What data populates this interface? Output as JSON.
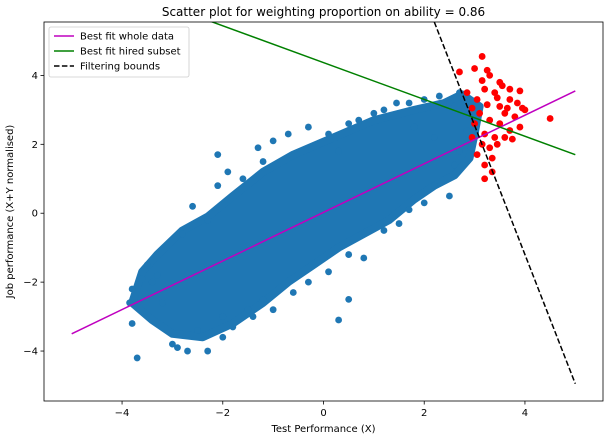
{
  "chart_data": {
    "type": "scatter",
    "title": "Scatter plot for weighting proportion on ability = 0.86",
    "xlabel": "Test Performance (X)",
    "ylabel": "Job performance (X+Y normalised)",
    "xlim": [
      -5.55,
      5.55
    ],
    "ylim": [
      -5.45,
      5.55
    ],
    "xticks": [
      -4,
      -2,
      0,
      2,
      4
    ],
    "yticks": [
      -4,
      -2,
      0,
      2,
      4
    ],
    "grid": false,
    "legend_position": "top-left",
    "colors": {
      "whole": "#1f77b4",
      "hired": "#ff0000",
      "fit_whole": "#bf00bf",
      "fit_hired": "#008000",
      "bounds": "#000000"
    },
    "cloud_outline": [
      [
        -3.8,
        -2.6
      ],
      [
        -3.6,
        -1.7
      ],
      [
        -3.3,
        -1.2
      ],
      [
        -2.8,
        -0.5
      ],
      [
        -2.3,
        -0.1
      ],
      [
        -1.8,
        0.5
      ],
      [
        -1.2,
        1.2
      ],
      [
        -0.6,
        1.7
      ],
      [
        0.2,
        2.2
      ],
      [
        1.0,
        2.7
      ],
      [
        1.8,
        3.0
      ],
      [
        2.4,
        3.2
      ],
      [
        2.75,
        3.45
      ],
      [
        3.1,
        3.1
      ],
      [
        3.0,
        2.3
      ],
      [
        2.9,
        1.6
      ],
      [
        2.6,
        1.1
      ],
      [
        2.2,
        0.8
      ],
      [
        1.8,
        0.4
      ],
      [
        1.3,
        -0.2
      ],
      [
        0.8,
        -0.6
      ],
      [
        0.3,
        -1.0
      ],
      [
        -0.2,
        -1.5
      ],
      [
        -0.7,
        -2.0
      ],
      [
        -1.2,
        -2.6
      ],
      [
        -1.8,
        -3.2
      ],
      [
        -2.4,
        -3.6
      ],
      [
        -3.0,
        -3.5
      ],
      [
        -3.4,
        -3.1
      ]
    ],
    "series": [
      {
        "name": "",
        "role": "whole_data",
        "points": [
          [
            -3.7,
            -4.2
          ],
          [
            -3.8,
            -3.2
          ],
          [
            -3.85,
            -2.6
          ],
          [
            -3.8,
            -2.2
          ],
          [
            -3.6,
            -1.9
          ],
          [
            -3.5,
            -1.5
          ],
          [
            -3.3,
            -1.8
          ],
          [
            -3.0,
            -3.8
          ],
          [
            -2.9,
            -3.9
          ],
          [
            -2.7,
            -4.0
          ],
          [
            -2.3,
            -4.0
          ],
          [
            -2.5,
            -3.4
          ],
          [
            -2.0,
            -3.6
          ],
          [
            -1.8,
            -3.3
          ],
          [
            -1.4,
            -3.0
          ],
          [
            -1.5,
            -2.8
          ],
          [
            -1.0,
            -2.8
          ],
          [
            0.3,
            -3.1
          ],
          [
            0.5,
            -2.5
          ],
          [
            -2.6,
            0.2
          ],
          [
            -2.1,
            0.8
          ],
          [
            -1.9,
            1.2
          ],
          [
            -2.1,
            1.7
          ],
          [
            -1.6,
            1.0
          ],
          [
            -1.2,
            1.5
          ],
          [
            -1.0,
            2.1
          ],
          [
            -1.3,
            1.9
          ],
          [
            -0.7,
            2.3
          ],
          [
            -0.3,
            2.5
          ],
          [
            0.1,
            2.3
          ],
          [
            0.5,
            2.6
          ],
          [
            0.7,
            2.7
          ],
          [
            1.0,
            2.9
          ],
          [
            1.2,
            3.0
          ],
          [
            1.45,
            3.2
          ],
          [
            1.7,
            3.2
          ],
          [
            2.0,
            3.3
          ],
          [
            2.3,
            3.4
          ],
          [
            2.5,
            3.2
          ],
          [
            2.7,
            3.5
          ],
          [
            2.8,
            3.3
          ],
          [
            2.9,
            2.9
          ],
          [
            2.85,
            2.4
          ],
          [
            2.7,
            1.8
          ],
          [
            2.6,
            1.4
          ],
          [
            2.5,
            0.5
          ],
          [
            2.2,
            0.8
          ],
          [
            2.0,
            0.3
          ],
          [
            1.7,
            0.1
          ],
          [
            1.5,
            -0.3
          ],
          [
            1.2,
            -0.5
          ],
          [
            0.8,
            -1.3
          ],
          [
            0.5,
            -1.2
          ],
          [
            0.1,
            -1.7
          ],
          [
            -0.3,
            -2.0
          ],
          [
            -0.6,
            -2.3
          ],
          [
            -1.2,
            -2.5
          ],
          [
            -2.0,
            -3.0
          ],
          [
            -3.2,
            -2.6
          ],
          [
            -3.4,
            -2.0
          ],
          [
            -2.8,
            -0.6
          ],
          [
            -2.3,
            -0.2
          ],
          [
            1.8,
            2.5
          ],
          [
            2.2,
            2.2
          ],
          [
            0.3,
            1.8
          ]
        ]
      },
      {
        "name": "",
        "role": "hired_subset",
        "points": [
          [
            3.15,
            4.55
          ],
          [
            2.7,
            4.1
          ],
          [
            3.0,
            4.2
          ],
          [
            3.3,
            4.0
          ],
          [
            3.5,
            3.8
          ],
          [
            3.7,
            3.6
          ],
          [
            3.9,
            3.55
          ],
          [
            3.85,
            3.2
          ],
          [
            3.95,
            3.05
          ],
          [
            4.0,
            3.0
          ],
          [
            3.7,
            3.3
          ],
          [
            3.4,
            3.5
          ],
          [
            3.2,
            3.6
          ],
          [
            3.05,
            3.3
          ],
          [
            3.25,
            3.15
          ],
          [
            3.5,
            3.1
          ],
          [
            3.6,
            2.9
          ],
          [
            3.8,
            2.8
          ],
          [
            3.9,
            2.5
          ],
          [
            4.5,
            2.75
          ],
          [
            3.7,
            2.4
          ],
          [
            3.5,
            2.6
          ],
          [
            3.3,
            2.7
          ],
          [
            3.1,
            2.9
          ],
          [
            2.95,
            3.05
          ],
          [
            3.0,
            2.6
          ],
          [
            3.2,
            2.3
          ],
          [
            3.4,
            2.2
          ],
          [
            3.6,
            2.2
          ],
          [
            3.75,
            2.15
          ],
          [
            3.3,
            1.9
          ],
          [
            3.35,
            1.6
          ],
          [
            3.2,
            1.4
          ],
          [
            3.35,
            1.2
          ],
          [
            3.2,
            1.0
          ],
          [
            3.45,
            2.0
          ],
          [
            3.15,
            2.0
          ],
          [
            2.95,
            2.2
          ],
          [
            3.05,
            1.7
          ],
          [
            3.55,
            3.7
          ],
          [
            3.25,
            4.15
          ],
          [
            3.45,
            3.35
          ],
          [
            3.65,
            3.05
          ],
          [
            3.15,
            3.85
          ],
          [
            2.85,
            3.5
          ]
        ]
      }
    ],
    "lines": [
      {
        "name": "Best fit whole data",
        "x": [
          -5.0,
          5.0
        ],
        "y": [
          -3.5,
          3.55
        ],
        "style": "solid"
      },
      {
        "name": "Best fit hired subset",
        "x": [
          -2.3,
          5.0
        ],
        "y": [
          5.6,
          1.7
        ],
        "style": "solid"
      },
      {
        "name": "Filtering bounds",
        "x": [
          2.2,
          5.0
        ],
        "y": [
          5.55,
          -4.95
        ],
        "style": "dashed"
      }
    ]
  }
}
